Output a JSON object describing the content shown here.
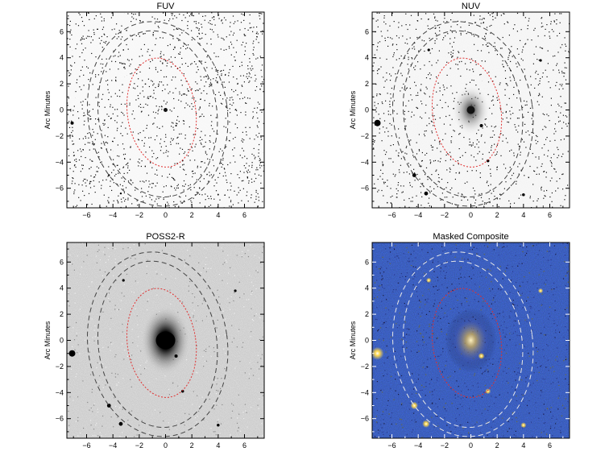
{
  "panels": [
    {
      "id": "fuv",
      "title": "FUV",
      "ylabel": "Arc Minutes"
    },
    {
      "id": "nuv",
      "title": "NUV",
      "ylabel": "Arc Minutes"
    },
    {
      "id": "poss",
      "title": "POSS2-R",
      "ylabel": "Arc Minutes"
    },
    {
      "id": "comp",
      "title": "Masked Composite",
      "ylabel": "Arc Minutes"
    }
  ],
  "axis": {
    "range": [
      -7.5,
      7.5
    ],
    "x_ticks": [
      -6,
      -4,
      -2,
      0,
      2,
      4,
      6
    ],
    "y_ticks": [
      6,
      4,
      2,
      0,
      -2,
      -4,
      -6
    ],
    "tick_labels_x": [
      "−6",
      "−4",
      "−2",
      "0",
      "2",
      "4",
      "6"
    ],
    "tick_labels_y": [
      "6",
      "4",
      "2",
      "0",
      "−2",
      "−4",
      "−6"
    ]
  },
  "ellipses": {
    "inner": {
      "cx": -0.3,
      "cy": -0.2,
      "rx": 2.6,
      "ry": 4.2,
      "color": "#e03030"
    },
    "outer1": {
      "cx": -0.6,
      "cy": -0.3,
      "rx": 4.5,
      "ry": 6.4,
      "color": "#444444"
    },
    "outer2": {
      "cx": -0.6,
      "cy": -0.3,
      "rx": 5.3,
      "ry": 7.1,
      "color": "#444444"
    }
  },
  "colors": {
    "fuv_bg": "#f6f6f6",
    "nuv_bg": "#f2f2f2",
    "poss_bg": "#c6c6c6",
    "comp_bg": "#0b0e1f",
    "comp_ellipse": "#e8e8e8",
    "comp_star": "#f2c84a"
  }
}
